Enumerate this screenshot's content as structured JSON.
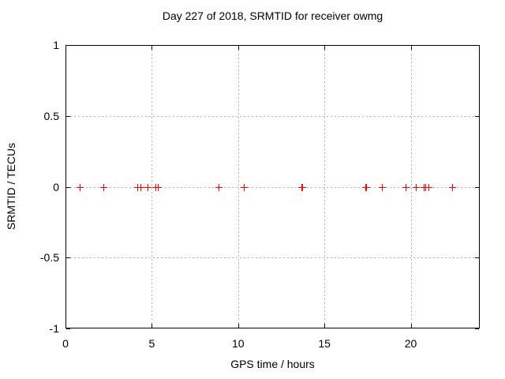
{
  "chart_data": {
    "type": "scatter",
    "title": "Day 227 of 2018, SRMTID for receiver owmg",
    "xlabel": "GPS time / hours",
    "ylabel": "SRMTID / TECUs",
    "xlim": [
      0,
      24
    ],
    "ylim": [
      -1,
      1
    ],
    "xticks": [
      0,
      5,
      10,
      15,
      20
    ],
    "yticks": [
      -1,
      -0.5,
      0,
      0.5,
      1
    ],
    "grid": true,
    "legend": "none",
    "marker": "plus",
    "marker_color": "#ff0000",
    "grid_color": "#b0b0b0",
    "border_color": "#000000",
    "series": [
      {
        "name": "SRMTID",
        "x": [
          0.81,
          2.18,
          4.15,
          4.34,
          4.77,
          5.21,
          5.34,
          8.88,
          10.33,
          13.68,
          13.73,
          17.35,
          17.4,
          18.33,
          19.7,
          20.3,
          20.74,
          20.86,
          21.01,
          22.39
        ],
        "y": [
          0,
          0,
          0,
          0,
          0,
          0,
          0,
          0,
          0,
          0,
          0,
          0,
          0,
          0,
          0,
          0,
          0,
          0,
          0,
          0
        ]
      }
    ]
  }
}
